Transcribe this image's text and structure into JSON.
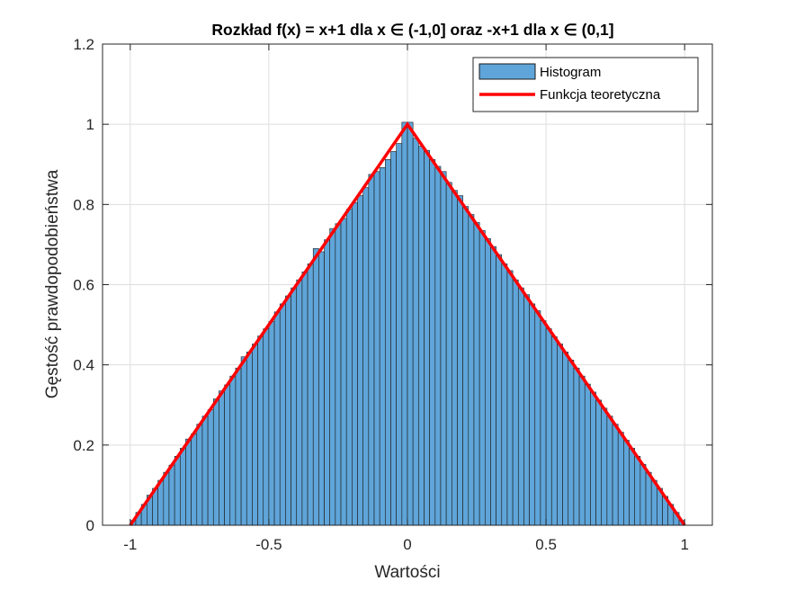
{
  "chart_data": {
    "type": "bar",
    "title": "Rozkład f(x) = x+1 dla x ∈ (-1,0] oraz -x+1 dla x ∈ (0,1]",
    "xlabel": "Wartości",
    "ylabel": "Gęstość prawdopodobieństwa",
    "xlim": [
      -1.1,
      1.1
    ],
    "ylim": [
      0,
      1.2
    ],
    "xticks": [
      -1,
      -0.5,
      0,
      0.5,
      1
    ],
    "xtick_labels": [
      "-1",
      "-0.5",
      "0",
      "0.5",
      "1"
    ],
    "yticks": [
      0,
      0.2,
      0.4,
      0.6,
      0.8,
      1,
      1.2
    ],
    "ytick_labels": [
      "0",
      "0.2",
      "0.4",
      "0.6",
      "0.8",
      "1",
      "1.2"
    ],
    "grid": true,
    "legend_position": "top-right",
    "bin_edges_range": [
      -1,
      1
    ],
    "bin_count": 100,
    "series": [
      {
        "name": "Histogram",
        "kind": "histogram",
        "color": "#5fa5d9",
        "edge_color": "#1a1a1a",
        "values": [
          0.012,
          0.032,
          0.052,
          0.075,
          0.092,
          0.112,
          0.132,
          0.15,
          0.172,
          0.192,
          0.215,
          0.228,
          0.252,
          0.272,
          0.288,
          0.315,
          0.335,
          0.35,
          0.372,
          0.392,
          0.42,
          0.432,
          0.452,
          0.472,
          0.49,
          0.508,
          0.532,
          0.552,
          0.572,
          0.592,
          0.612,
          0.632,
          0.652,
          0.69,
          0.682,
          0.712,
          0.74,
          0.752,
          0.765,
          0.788,
          0.805,
          0.822,
          0.842,
          0.875,
          0.882,
          0.892,
          0.912,
          0.932,
          0.952,
          1.005,
          1.005,
          0.965,
          0.945,
          0.935,
          0.912,
          0.895,
          0.882,
          0.855,
          0.835,
          0.822,
          0.795,
          0.775,
          0.755,
          0.735,
          0.715,
          0.695,
          0.675,
          0.652,
          0.635,
          0.612,
          0.592,
          0.575,
          0.552,
          0.535,
          0.51,
          0.49,
          0.47,
          0.452,
          0.432,
          0.412,
          0.392,
          0.372,
          0.352,
          0.332,
          0.312,
          0.292,
          0.272,
          0.252,
          0.232,
          0.212,
          0.192,
          0.172,
          0.152,
          0.132,
          0.112,
          0.092,
          0.072,
          0.052,
          0.032,
          0.012
        ]
      },
      {
        "name": "Funkcja teoretyczna",
        "kind": "line",
        "color": "#ff0000",
        "x": [
          -1,
          0,
          1
        ],
        "y": [
          0,
          1,
          0
        ]
      }
    ]
  }
}
